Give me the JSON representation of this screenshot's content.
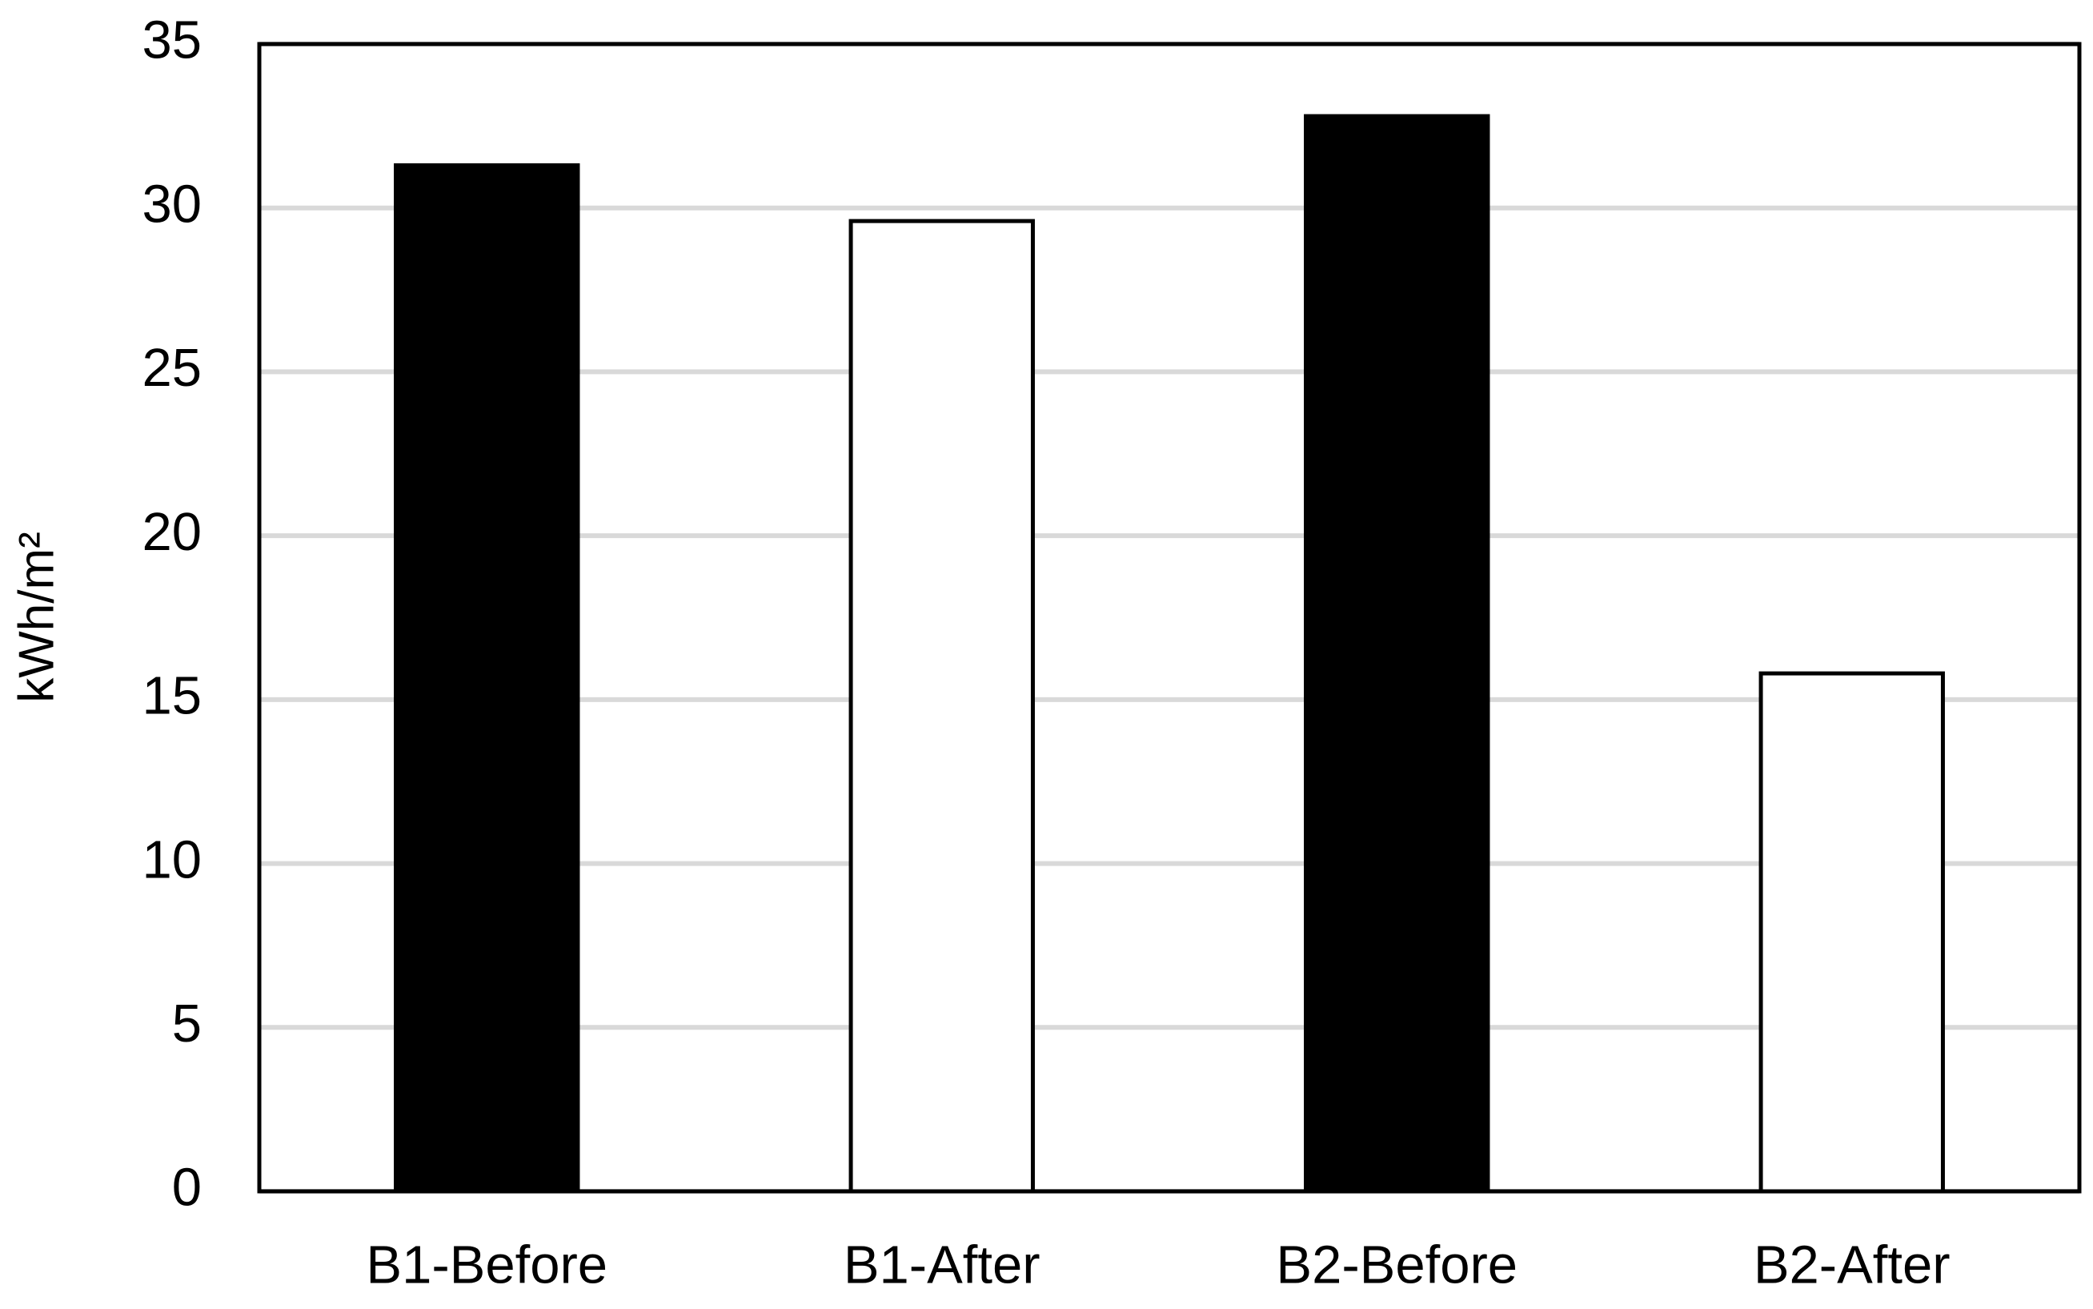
{
  "chart_data": {
    "type": "bar",
    "y_label": "kWh/m²",
    "categories": [
      "B1-Before",
      "B1-After",
      "B2-Before",
      "B2-After"
    ],
    "values": [
      31.3,
      29.6,
      32.8,
      15.8
    ],
    "colors": [
      "#000000",
      "#ffffff",
      "#000000",
      "#ffffff"
    ],
    "ylim": [
      0,
      35
    ],
    "yticks": [
      0,
      5,
      10,
      15,
      20,
      25,
      30,
      35
    ],
    "grid": true
  }
}
